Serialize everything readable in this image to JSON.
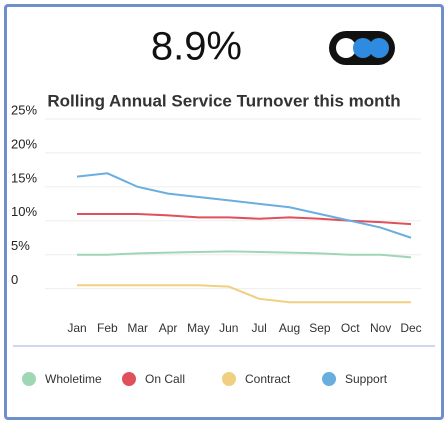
{
  "kpi": {
    "value": "8.9%"
  },
  "chart_data": {
    "type": "line",
    "title": "Rolling Annual Service Turnover this month",
    "categories": [
      "Jan",
      "Feb",
      "Mar",
      "Apr",
      "May",
      "Jun",
      "Jul",
      "Aug",
      "Sep",
      "Oct",
      "Nov",
      "Dec"
    ],
    "series": [
      {
        "name": "Wholetime",
        "color": "#9fd6b4",
        "values": [
          5,
          5,
          5.2,
          5.3,
          5.4,
          5.5,
          5.4,
          5.3,
          5.2,
          5,
          5,
          4.6
        ]
      },
      {
        "name": "On Call",
        "color": "#e0505a",
        "values": [
          11,
          11,
          11,
          10.8,
          10.5,
          10.5,
          10.3,
          10.5,
          10.3,
          10,
          9.8,
          9.5
        ]
      },
      {
        "name": "Contract",
        "color": "#f0d080",
        "values": [
          0.5,
          0.5,
          0.5,
          0.5,
          0.5,
          0.3,
          -1.5,
          -2,
          -2,
          -2,
          -2,
          -2
        ]
      },
      {
        "name": "Support",
        "color": "#6aaee0",
        "values": [
          16.5,
          17,
          15,
          14,
          13.5,
          13,
          12.5,
          12,
          11,
          10,
          9,
          7.5
        ]
      }
    ],
    "ylim": [
      -3,
      25
    ],
    "yticks": [
      0,
      {
        "value": 5,
        "label": "5%"
      },
      {
        "value": 10,
        "label": "10%"
      },
      {
        "value": 15,
        "label": "15%"
      },
      {
        "value": 20,
        "label": "20%"
      },
      {
        "value": 25,
        "label": "25%"
      }
    ],
    "grid": true
  }
}
